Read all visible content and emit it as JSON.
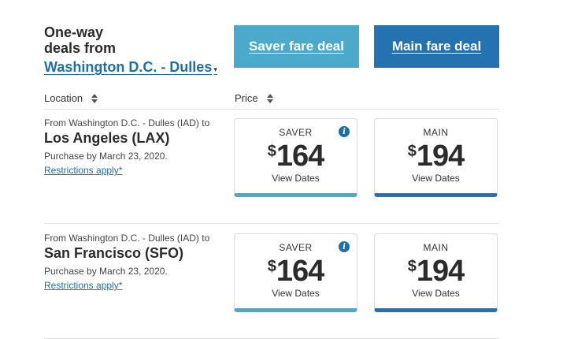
{
  "header": {
    "title_line1": "One-way",
    "title_line2": "deals from",
    "origin_link": "Washington D.C. - Dulles",
    "caret": "▾"
  },
  "buttons": {
    "saver": "Saver fare deal",
    "main": "Main fare deal"
  },
  "columns": {
    "location": "Location",
    "price": "Price"
  },
  "colors": {
    "saver": "#4ba9cc",
    "main": "#2472b0",
    "link": "#1d6fa8"
  },
  "rows": [
    {
      "from": "From Washington D.C. - Dulles (IAD) to",
      "destination": "Los Angeles (LAX)",
      "purchase": "Purchase by March 23, 2020.",
      "restrictions": "Restrictions apply*",
      "saver": {
        "label": "SAVER",
        "currency": "$",
        "amount": "164",
        "action": "View Dates"
      },
      "main": {
        "label": "MAIN",
        "currency": "$",
        "amount": "194",
        "action": "View Dates"
      }
    },
    {
      "from": "From Washington D.C. - Dulles (IAD) to",
      "destination": "San Francisco (SFO)",
      "purchase": "Purchase by March 23, 2020.",
      "restrictions": "Restrictions apply*",
      "saver": {
        "label": "SAVER",
        "currency": "$",
        "amount": "164",
        "action": "View Dates"
      },
      "main": {
        "label": "MAIN",
        "currency": "$",
        "amount": "194",
        "action": "View Dates"
      }
    }
  ],
  "info_icon": "i"
}
